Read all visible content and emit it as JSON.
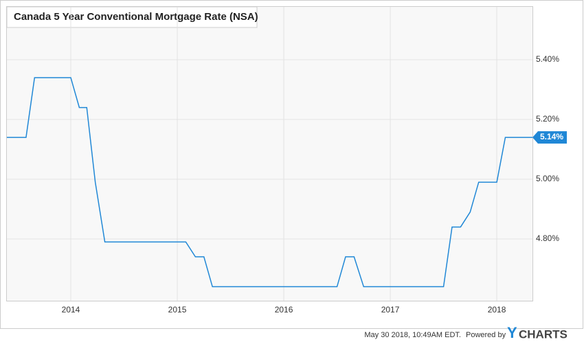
{
  "chart_data": {
    "type": "line",
    "title": "Canada 5 Year Conventional Mortgage Rate (NSA)",
    "x": [
      2013.4,
      2013.58,
      2013.66,
      2014.0,
      2014.08,
      2014.15,
      2014.23,
      2014.32,
      2015.08,
      2015.17,
      2015.25,
      2015.33,
      2016.5,
      2016.58,
      2016.66,
      2016.75,
      2017.5,
      2017.58,
      2017.66,
      2017.75,
      2017.83,
      2018.0,
      2018.08,
      2018.335
    ],
    "series": [
      {
        "color": "#1f87d6",
        "values": [
          5.14,
          5.14,
          5.34,
          5.34,
          5.24,
          5.24,
          4.99,
          4.79,
          4.79,
          4.74,
          4.74,
          4.64,
          4.64,
          4.74,
          4.74,
          4.64,
          4.64,
          4.84,
          4.84,
          4.89,
          4.99,
          4.99,
          5.14,
          5.14
        ]
      }
    ],
    "current_value": {
      "value": 5.14,
      "label": "5.14%"
    },
    "xlim": [
      2013.4,
      2018.335
    ],
    "xticks": [
      2014,
      2015,
      2016,
      2017,
      2018
    ],
    "ylim": [
      4.593,
      5.577
    ],
    "yticks": [
      {
        "value": 4.8,
        "label": "4.80%"
      },
      {
        "value": 5.0,
        "label": "5.00%"
      },
      {
        "value": 5.2,
        "label": "5.20%"
      },
      {
        "value": 5.4,
        "label": "5.40%"
      }
    ],
    "grid": true
  },
  "footer": {
    "timestamp": "May 30 2018, 10:49AM EDT.",
    "powered_by": "Powered by",
    "logo_y": "Y",
    "logo_rest": "CHARTS"
  }
}
